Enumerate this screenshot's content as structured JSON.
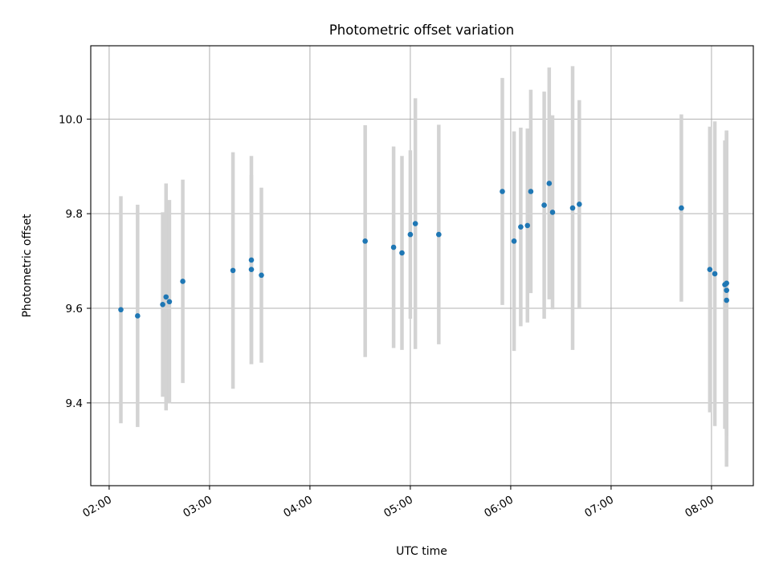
{
  "chart_data": {
    "type": "scatter",
    "title": "Photometric offset variation",
    "xlabel": "UTC time",
    "ylabel": "Photometric offset",
    "x_tick_labels": [
      "02:00",
      "03:00",
      "04:00",
      "05:00",
      "06:00",
      "07:00",
      "08:00"
    ],
    "y_tick_labels": [
      "9.4",
      "9.6",
      "9.8",
      "10.0"
    ],
    "x_ticks": [
      "02:00",
      "03:00",
      "04:00",
      "05:00",
      "06:00",
      "07:00",
      "08:00"
    ],
    "y_ticks": [
      9.4,
      9.6,
      9.8,
      10.0
    ],
    "xlim": [
      "01:49",
      "08:25"
    ],
    "ylim": [
      9.225,
      10.155
    ],
    "grid": true,
    "marker_color": "#1f77b4",
    "errorbar_color": "#d3d3d3",
    "points": [
      {
        "x": "02:07",
        "y": 9.597,
        "err": 0.24
      },
      {
        "x": "02:17",
        "y": 9.584,
        "err": 0.235
      },
      {
        "x": "02:32",
        "y": 9.608,
        "err": 0.195
      },
      {
        "x": "02:34",
        "y": 9.624,
        "err": 0.24
      },
      {
        "x": "02:36",
        "y": 9.614,
        "err": 0.215
      },
      {
        "x": "02:44",
        "y": 9.657,
        "err": 0.215
      },
      {
        "x": "03:14",
        "y": 9.68,
        "err": 0.25
      },
      {
        "x": "03:25",
        "y": 9.682,
        "err": 0.2
      },
      {
        "x": "03:25",
        "y": 9.702,
        "err": 0.22
      },
      {
        "x": "03:31",
        "y": 9.67,
        "err": 0.185
      },
      {
        "x": "04:33",
        "y": 9.742,
        "err": 0.245
      },
      {
        "x": "04:50",
        "y": 9.729,
        "err": 0.213
      },
      {
        "x": "04:55",
        "y": 9.717,
        "err": 0.205
      },
      {
        "x": "05:00",
        "y": 9.756,
        "err": 0.178
      },
      {
        "x": "05:03",
        "y": 9.779,
        "err": 0.265
      },
      {
        "x": "05:17",
        "y": 9.756,
        "err": 0.232
      },
      {
        "x": "05:55",
        "y": 9.847,
        "err": 0.24
      },
      {
        "x": "06:02",
        "y": 9.742,
        "err": 0.232
      },
      {
        "x": "06:06",
        "y": 9.772,
        "err": 0.21
      },
      {
        "x": "06:10",
        "y": 9.775,
        "err": 0.205
      },
      {
        "x": "06:12",
        "y": 9.847,
        "err": 0.215
      },
      {
        "x": "06:20",
        "y": 9.818,
        "err": 0.24
      },
      {
        "x": "06:23",
        "y": 9.864,
        "err": 0.245
      },
      {
        "x": "06:25",
        "y": 9.803,
        "err": 0.205
      },
      {
        "x": "06:37",
        "y": 9.812,
        "err": 0.3
      },
      {
        "x": "06:41",
        "y": 9.82,
        "err": 0.22
      },
      {
        "x": "07:42",
        "y": 9.812,
        "err": 0.198
      },
      {
        "x": "07:59",
        "y": 9.682,
        "err": 0.302
      },
      {
        "x": "08:02",
        "y": 9.673,
        "err": 0.322
      },
      {
        "x": "08:08",
        "y": 9.65,
        "err": 0.305
      },
      {
        "x": "08:09",
        "y": 9.653,
        "err": 0.322
      },
      {
        "x": "08:09",
        "y": 9.638,
        "err": 0.338
      },
      {
        "x": "08:09",
        "y": 9.617,
        "err": 0.352
      }
    ]
  }
}
